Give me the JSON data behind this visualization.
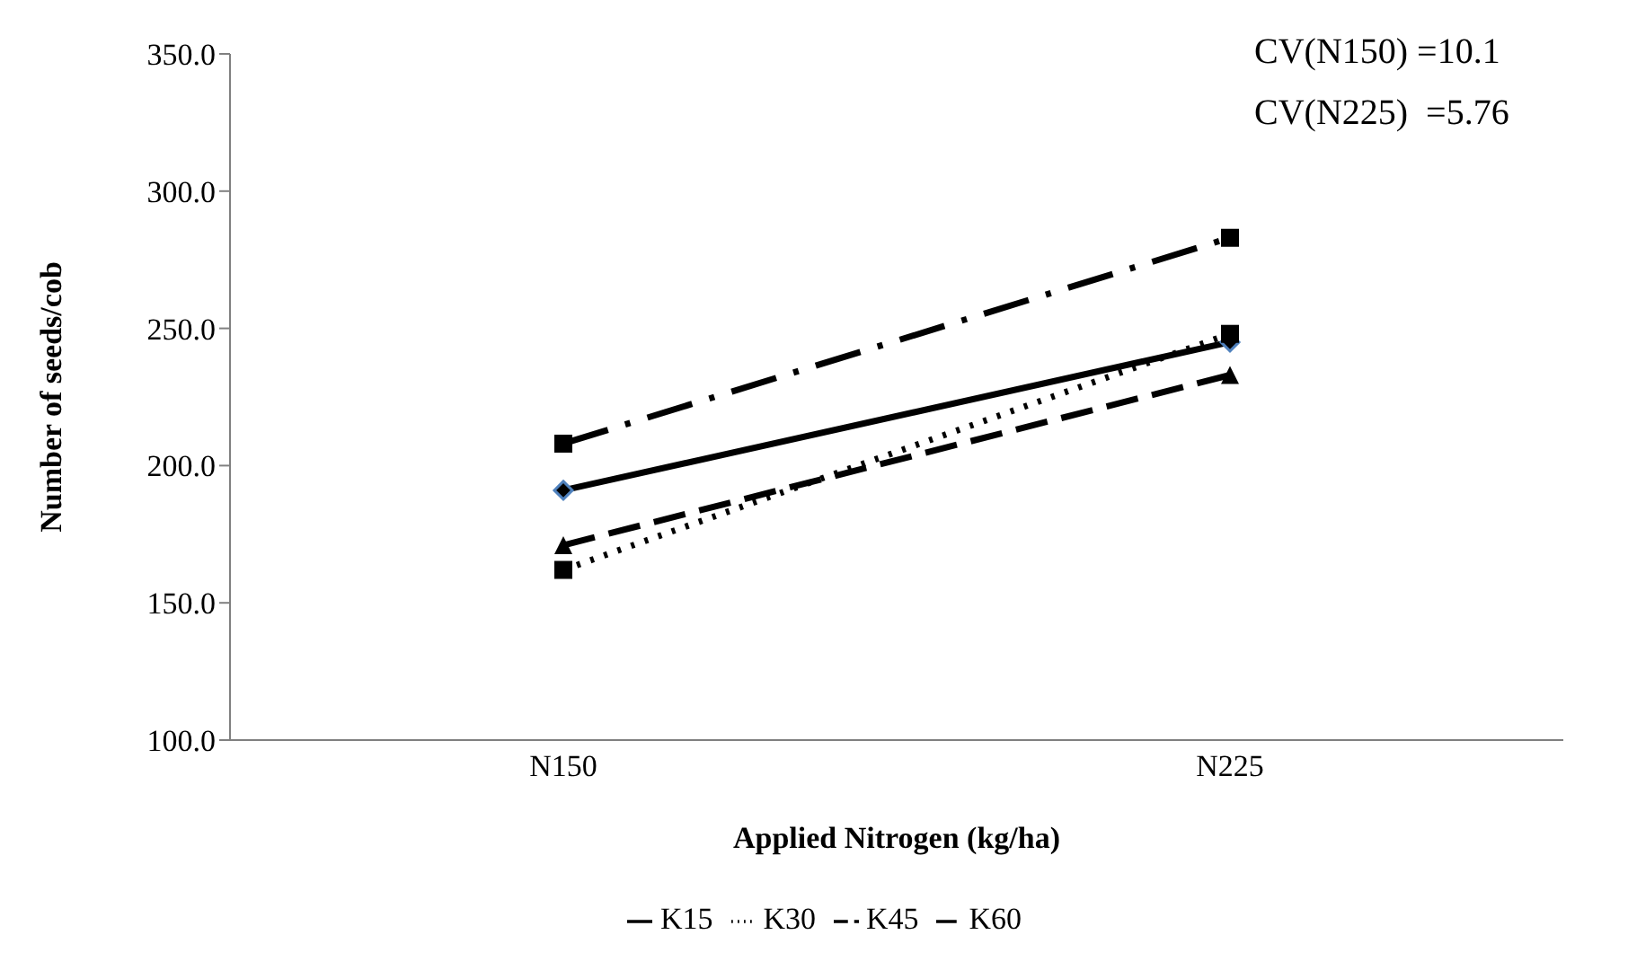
{
  "chart_data": {
    "type": "line",
    "xlabel": "Applied Nitrogen (kg/ha)",
    "ylabel": "Number of seeds/cob",
    "categories": [
      "N150",
      "N225"
    ],
    "series": [
      {
        "name": "K15",
        "color": "#000000",
        "values": [
          191,
          245
        ],
        "marker": "diamond",
        "line_style": "solid"
      },
      {
        "name": "K30",
        "color": "#000000",
        "values": [
          162,
          248
        ],
        "marker": "square",
        "line_style": "dotted"
      },
      {
        "name": "K45",
        "color": "#000000",
        "values": [
          171,
          233
        ],
        "marker": "triangle",
        "line_style": "dashed"
      },
      {
        "name": "K60",
        "color": "#000000",
        "values": [
          208,
          283
        ],
        "marker": "square",
        "line_style": "dashed"
      }
    ],
    "ylim": [
      100,
      350
    ],
    "yticks": [
      {
        "value": 100,
        "label": "100.0"
      },
      {
        "value": 150,
        "label": "150.0"
      },
      {
        "value": 200,
        "label": "200.0"
      },
      {
        "value": 250,
        "label": "250.0"
      },
      {
        "value": 300,
        "label": "300.0"
      },
      {
        "value": 350,
        "label": "350.0"
      }
    ],
    "grid": false,
    "legend": "bottom",
    "annotations": [
      "CV(N150) =10.1",
      "CV(N225)  =5.76"
    ]
  }
}
